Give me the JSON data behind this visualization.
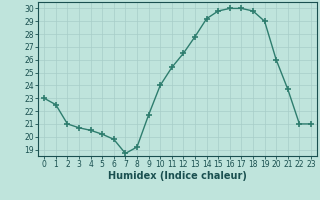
{
  "x": [
    0,
    1,
    2,
    3,
    4,
    5,
    6,
    7,
    8,
    9,
    10,
    11,
    12,
    13,
    14,
    15,
    16,
    17,
    18,
    19,
    20,
    21,
    22,
    23
  ],
  "y": [
    23.0,
    22.5,
    21.0,
    20.7,
    20.5,
    20.2,
    19.8,
    18.7,
    19.2,
    21.7,
    24.0,
    25.4,
    26.5,
    27.8,
    29.2,
    29.8,
    30.0,
    30.0,
    29.8,
    29.0,
    26.0,
    23.7,
    21.0,
    21.0
  ],
  "line_color": "#2e7d6e",
  "marker": "+",
  "markersize": 4,
  "linewidth": 1.0,
  "xlabel": "Humidex (Indice chaleur)",
  "xlim": [
    -0.5,
    23.5
  ],
  "ylim": [
    18.5,
    30.5
  ],
  "yticks": [
    19,
    20,
    21,
    22,
    23,
    24,
    25,
    26,
    27,
    28,
    29,
    30
  ],
  "xticks": [
    0,
    1,
    2,
    3,
    4,
    5,
    6,
    7,
    8,
    9,
    10,
    11,
    12,
    13,
    14,
    15,
    16,
    17,
    18,
    19,
    20,
    21,
    22,
    23
  ],
  "bg_color": "#bfe4dc",
  "grid_color": "#a8cec8",
  "tick_fontsize": 5.5,
  "label_fontsize": 7,
  "tick_color": "#1a5050",
  "line_border_color": "#1a5050"
}
